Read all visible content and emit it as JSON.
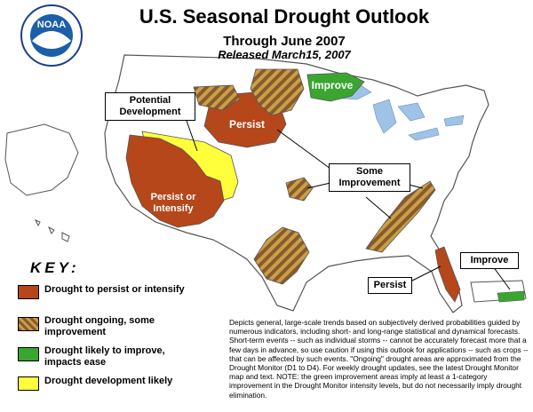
{
  "header": {
    "title": "U.S. Seasonal Drought Outlook",
    "subtitle": "Through June 2007",
    "released": "Released March15, 2007",
    "logo_text": "NOAA"
  },
  "callouts": {
    "potential_development": "Potential Development",
    "some_improvement": "Some Improvement",
    "improve_pr": "Improve",
    "persist_fl": "Persist"
  },
  "map_labels": {
    "persist_nw": "Persist",
    "persist_or_intensify": "Persist or Intensify",
    "improve_north": "Improve"
  },
  "key": {
    "title": "KEY:",
    "items": [
      {
        "label": "Drought to persist or intensify",
        "color": "#b5471b"
      },
      {
        "label": "Drought ongoing, some improvement",
        "color": "#8b5a2b"
      },
      {
        "label": "Drought likely to improve, impacts ease",
        "color": "#3aa631"
      },
      {
        "label": "Drought development likely",
        "color": "#ffff3c"
      }
    ]
  },
  "colors": {
    "persist": "#b5471b",
    "improve": "#3aa631",
    "develop": "#ffff3c",
    "stripe_a": "#8b5a2b",
    "stripe_b": "#c7a04a",
    "water": "#9ec3e6"
  },
  "description": "Depicts general, large-scale trends based on subjectively derived probabilities guided by numerous indicators, including short- and long-range statistical and dynamical forecasts. Short-term events -- such as individual storms -- cannot be accurately forecast more that a few days in advance, so use caution if using this outlook for applications -- such as crops -- that can be affected by such events. \"Ongoing\" drought areas are approximated from the Drought Monitor (D1 to D4). For weekly drought updates, see the latest Drought Monitor map and text. NOTE: the green improvement areas imply at least a 1-category improvement in the Drought Monitor intensity levels, but do not necessarily imply drought elimination."
}
